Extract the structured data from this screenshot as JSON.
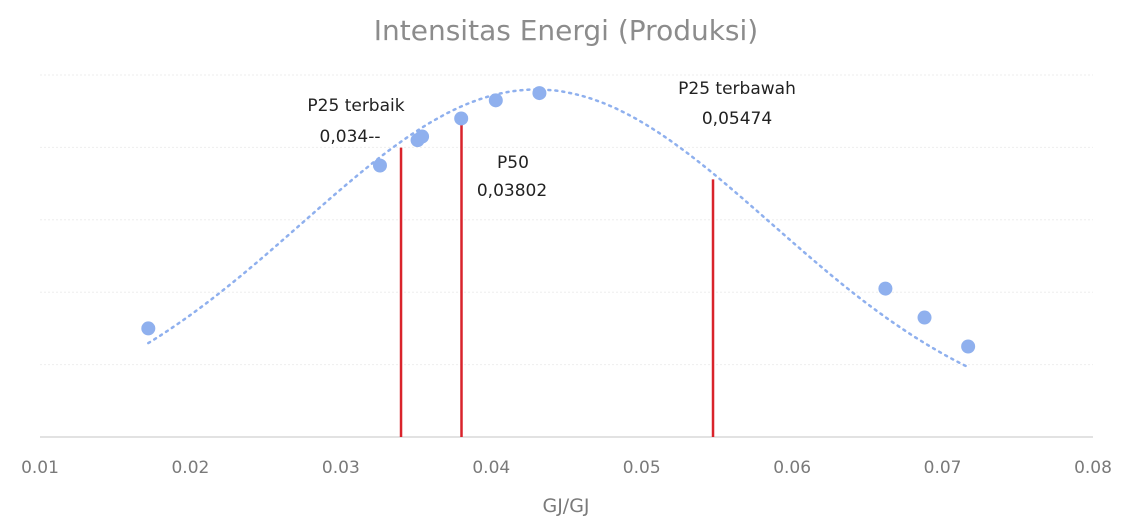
{
  "chart_data": {
    "type": "scatter",
    "title": "Intensitas Energi (Produksi)",
    "xlabel": "GJ/GJ",
    "ylabel": "",
    "xlim": [
      0.01,
      0.08
    ],
    "x_ticks": [
      "0.01",
      "0.02",
      "0.03",
      "0.04",
      "0.05",
      "0.06",
      "0.07",
      "0.08"
    ],
    "grid": true,
    "colors": {
      "points": "#8fb0ee",
      "reference_lines": "#d9232b"
    },
    "points": [
      {
        "x": 0.0172,
        "y": 0.3
      },
      {
        "x": 0.0326,
        "y": 0.75
      },
      {
        "x": 0.0351,
        "y": 0.82
      },
      {
        "x": 0.0354,
        "y": 0.83
      },
      {
        "x": 0.038,
        "y": 0.88
      },
      {
        "x": 0.0403,
        "y": 0.93
      },
      {
        "x": 0.0432,
        "y": 0.95
      },
      {
        "x": 0.0662,
        "y": 0.41
      },
      {
        "x": 0.0688,
        "y": 0.33
      },
      {
        "x": 0.0717,
        "y": 0.25
      }
    ],
    "reference_lines": [
      {
        "x": 0.034,
        "label": "P25 terbaik",
        "value_label": "0,034--"
      },
      {
        "x": 0.03802,
        "label": "P50",
        "value_label": "0,03802"
      },
      {
        "x": 0.05474,
        "label": "P25 terbawah",
        "value_label": "0,05474"
      }
    ]
  }
}
